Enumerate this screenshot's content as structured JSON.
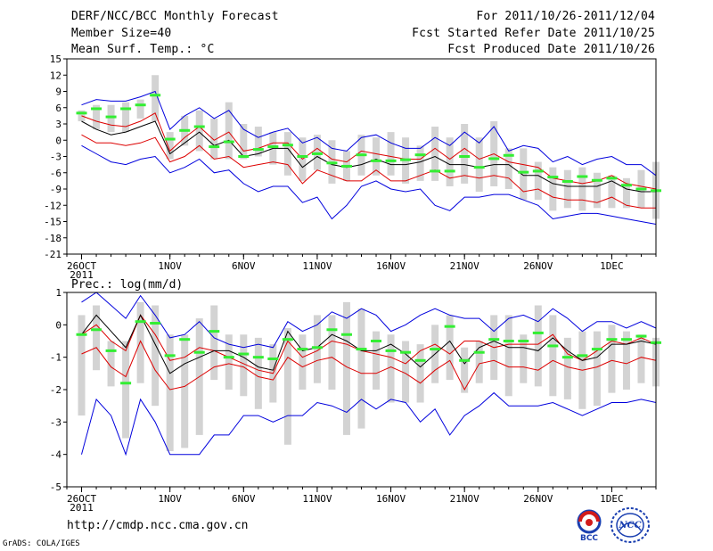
{
  "header": {
    "title": "DERF/NCC/BCC Monthly Forecast",
    "member": "Member Size=40",
    "variable": "Mean Surf. Temp.: °C",
    "period": "For 2011/10/26-2011/12/04",
    "started": "Fcst Started Refer Date 2011/10/25",
    "produced": "Fcst Produced Date 2011/10/26"
  },
  "footer": {
    "url": "http://cmdp.ncc.cma.gov.cn",
    "grads": "GrADS: COLA/IGES",
    "logo_bcc": "BCC",
    "logo_ncc": "NCC"
  },
  "colors": {
    "box": "#d3d3d3",
    "median": "#33ee33",
    "mean": "#000000",
    "inner": "#dd0000",
    "outer": "#0000dd"
  },
  "chart_data": [
    {
      "type": "line",
      "title": "Mean Surf. Temp.: °C",
      "ylim": [
        -21,
        15
      ],
      "yticks": [
        15,
        12,
        9,
        6,
        3,
        0,
        -3,
        -6,
        -9,
        -12,
        -15,
        -18,
        -21
      ],
      "xlim": [
        0,
        40
      ],
      "xticks": [
        {
          "x": 1,
          "label": "26OCT",
          "sub": "2011"
        },
        {
          "x": 7,
          "label": "1NOV"
        },
        {
          "x": 12,
          "label": "6NOV"
        },
        {
          "x": 17,
          "label": "11NOV"
        },
        {
          "x": 22,
          "label": "16NOV"
        },
        {
          "x": 27,
          "label": "21NOV"
        },
        {
          "x": 32,
          "label": "26NOV"
        },
        {
          "x": 37,
          "label": "1DEC"
        }
      ],
      "x": [
        1,
        2,
        3,
        4,
        5,
        6,
        7,
        8,
        9,
        10,
        11,
        12,
        13,
        14,
        15,
        16,
        17,
        18,
        19,
        20,
        21,
        22,
        23,
        24,
        25,
        26,
        27,
        28,
        29,
        30,
        31,
        32,
        33,
        34,
        35,
        36,
        37,
        38,
        39,
        40
      ],
      "series": [
        {
          "name": "upper",
          "values": [
            6.5,
            7.5,
            7.2,
            7.2,
            8.0,
            9.0,
            2.0,
            4.5,
            6.0,
            4.0,
            5.5,
            2.0,
            0.5,
            1.5,
            2.2,
            -0.5,
            0.5,
            -1.5,
            -2.0,
            0.5,
            1.0,
            -0.5,
            -1.5,
            -1.5,
            0.5,
            -1.0,
            1.5,
            -0.5,
            2.5,
            -2.0,
            -1.0,
            -1.5,
            -4.0,
            -3.0,
            -4.5,
            -3.5,
            -3.0,
            -4.5,
            -4.5,
            -6.5
          ]
        },
        {
          "name": "upper_inner",
          "values": [
            4.5,
            3.5,
            2.8,
            2.5,
            3.5,
            5.0,
            -2.0,
            0.5,
            2.5,
            0.0,
            1.5,
            -2.0,
            -1.5,
            -0.5,
            -0.5,
            -3.5,
            -1.5,
            -3.5,
            -4.0,
            -2.0,
            -2.5,
            -3.0,
            -3.5,
            -3.5,
            -1.5,
            -3.5,
            -1.5,
            -3.5,
            -2.5,
            -4.0,
            -4.5,
            -5.0,
            -7.0,
            -7.5,
            -8.0,
            -7.5,
            -6.5,
            -8.0,
            -8.5,
            -9.0
          ]
        },
        {
          "name": "mean",
          "values": [
            3.5,
            2.0,
            1.0,
            1.5,
            2.5,
            3.5,
            -2.5,
            -0.5,
            1.5,
            -1.0,
            0.0,
            -3.0,
            -2.5,
            -1.5,
            -1.5,
            -5.0,
            -3.0,
            -4.5,
            -5.0,
            -4.5,
            -3.5,
            -4.5,
            -4.5,
            -4.0,
            -3.0,
            -4.5,
            -4.5,
            -5.0,
            -4.5,
            -4.5,
            -6.5,
            -6.5,
            -8.0,
            -8.5,
            -8.5,
            -8.5,
            -7.5,
            -9.0,
            -9.5,
            -9.5
          ]
        },
        {
          "name": "lower_inner",
          "values": [
            1.0,
            -0.5,
            -0.5,
            -1.0,
            -0.5,
            0.5,
            -4.0,
            -3.0,
            -1.0,
            -3.5,
            -3.0,
            -5.0,
            -4.5,
            -4.0,
            -4.5,
            -8.0,
            -5.5,
            -6.5,
            -7.5,
            -7.5,
            -5.5,
            -7.5,
            -7.5,
            -6.5,
            -5.5,
            -7.0,
            -6.5,
            -7.0,
            -6.5,
            -7.0,
            -9.5,
            -9.0,
            -10.5,
            -11.0,
            -11.0,
            -11.5,
            -10.5,
            -12.0,
            -12.5,
            -12.5
          ]
        },
        {
          "name": "lower",
          "values": [
            -1.0,
            -2.5,
            -4.0,
            -4.5,
            -3.5,
            -3.0,
            -6.0,
            -5.0,
            -3.5,
            -6.0,
            -5.5,
            -8.0,
            -9.5,
            -8.5,
            -8.5,
            -11.5,
            -10.5,
            -14.5,
            -12.0,
            -8.5,
            -7.5,
            -9.0,
            -9.5,
            -9.0,
            -12.0,
            -13.0,
            -10.5,
            -10.5,
            -10.0,
            -10.0,
            -11.0,
            -12.0,
            -14.5,
            -14.0,
            -13.5,
            -13.5,
            -14.0,
            -14.5,
            -15.0,
            -15.5
          ]
        },
        {
          "name": "median",
          "values": [
            5.0,
            5.8,
            4.3,
            5.8,
            6.5,
            8.3,
            0.2,
            1.8,
            2.5,
            -1.2,
            -0.3,
            -3.0,
            -1.7,
            -1.2,
            -0.9,
            -3.0,
            -2.5,
            -4.2,
            -4.8,
            -2.7,
            -3.8,
            -3.8,
            -3.6,
            -2.7,
            -5.7,
            -5.7,
            -3.0,
            -5.0,
            -3.4,
            -2.8,
            -5.9,
            -5.7,
            -6.8,
            -7.6,
            -6.7,
            -7.4,
            -7.0,
            -8.3,
            -9.0,
            -9.3
          ]
        }
      ],
      "boxes": {
        "high": [
          5.5,
          6.5,
          6.5,
          7.0,
          7.5,
          12.0,
          1.5,
          4.5,
          5.5,
          4.0,
          7.0,
          3.0,
          2.5,
          1.5,
          1.5,
          0.5,
          1.0,
          0.0,
          -2.0,
          1.0,
          0.5,
          1.5,
          0.5,
          -1.0,
          2.5,
          0.5,
          3.0,
          0.5,
          3.5,
          -1.5,
          -1.5,
          -4.0,
          -5.0,
          -5.5,
          -5.0,
          -6.0,
          -6.5,
          -7.0,
          -5.5,
          -4.0
        ],
        "low": [
          3.5,
          2.0,
          1.5,
          1.5,
          4.0,
          3.5,
          -3.5,
          -1.0,
          -2.0,
          -3.5,
          -3.5,
          -3.5,
          -3.0,
          -4.5,
          -6.5,
          -7.5,
          -5.5,
          -8.0,
          -7.5,
          -6.5,
          -6.5,
          -6.5,
          -8.0,
          -7.5,
          -7.5,
          -8.5,
          -8.0,
          -9.5,
          -8.5,
          -9.0,
          -11.0,
          -11.0,
          -13.0,
          -12.5,
          -13.0,
          -12.5,
          -12.5,
          -12.5,
          -12.5,
          -14.5
        ]
      }
    },
    {
      "type": "line",
      "title": "Prec.: log(mm/d)",
      "ylim": [
        -5,
        1
      ],
      "yticks": [
        1,
        0,
        -1,
        -2,
        -3,
        -4,
        -5
      ],
      "xlim": [
        0,
        40
      ],
      "xticks": [
        {
          "x": 1,
          "label": "26OCT",
          "sub": "2011"
        },
        {
          "x": 7,
          "label": "1NOV"
        },
        {
          "x": 12,
          "label": "6NOV"
        },
        {
          "x": 17,
          "label": "11NOV"
        },
        {
          "x": 22,
          "label": "16NOV"
        },
        {
          "x": 27,
          "label": "21NOV"
        },
        {
          "x": 32,
          "label": "26NOV"
        },
        {
          "x": 37,
          "label": "1DEC"
        }
      ],
      "x": [
        1,
        2,
        3,
        4,
        5,
        6,
        7,
        8,
        9,
        10,
        11,
        12,
        13,
        14,
        15,
        16,
        17,
        18,
        19,
        20,
        21,
        22,
        23,
        24,
        25,
        26,
        27,
        28,
        29,
        30,
        31,
        32,
        33,
        34,
        35,
        36,
        37,
        38,
        39,
        40
      ],
      "series": [
        {
          "name": "upper",
          "values": [
            0.7,
            1.0,
            0.6,
            0.2,
            0.9,
            0.3,
            -0.4,
            -0.3,
            0.1,
            -0.4,
            -0.6,
            -0.7,
            -0.6,
            -0.7,
            0.1,
            -0.2,
            0.0,
            0.4,
            0.2,
            0.5,
            0.3,
            -0.2,
            0.0,
            0.3,
            0.5,
            0.3,
            0.2,
            0.2,
            -0.2,
            0.2,
            0.3,
            0.1,
            0.5,
            0.2,
            -0.2,
            0.1,
            0.1,
            -0.1,
            0.1,
            -0.1
          ]
        },
        {
          "name": "upper_inner",
          "values": [
            -0.3,
            0.0,
            -0.5,
            -0.8,
            0.3,
            -0.3,
            -1.1,
            -1.0,
            -0.7,
            -0.8,
            -1.0,
            -1.2,
            -1.4,
            -1.5,
            -0.5,
            -1.0,
            -0.8,
            -0.5,
            -0.6,
            -0.8,
            -0.9,
            -1.0,
            -1.2,
            -0.8,
            -0.6,
            -0.9,
            -0.5,
            -0.5,
            -0.7,
            -0.6,
            -0.6,
            -0.6,
            -0.3,
            -0.9,
            -1.1,
            -0.8,
            -0.5,
            -0.6,
            -0.4,
            -0.6
          ]
        },
        {
          "name": "mean",
          "values": [
            -0.3,
            0.3,
            -0.2,
            -0.7,
            0.3,
            -0.6,
            -1.5,
            -1.2,
            -1.0,
            -0.8,
            -0.8,
            -1.0,
            -1.3,
            -1.4,
            -0.2,
            -0.8,
            -0.7,
            -0.3,
            -0.5,
            -0.8,
            -0.8,
            -0.6,
            -0.9,
            -1.3,
            -0.9,
            -0.5,
            -1.2,
            -0.7,
            -0.5,
            -0.7,
            -0.7,
            -0.8,
            -0.4,
            -0.8,
            -1.1,
            -1.0,
            -0.6,
            -0.6,
            -0.5,
            -0.6
          ]
        },
        {
          "name": "lower_inner",
          "values": [
            -0.9,
            -0.7,
            -1.3,
            -1.6,
            -0.5,
            -1.4,
            -2.0,
            -1.9,
            -1.6,
            -1.3,
            -1.2,
            -1.3,
            -1.6,
            -1.7,
            -1.0,
            -1.3,
            -1.1,
            -1.0,
            -1.3,
            -1.5,
            -1.5,
            -1.3,
            -1.5,
            -1.8,
            -1.4,
            -1.1,
            -2.0,
            -1.2,
            -1.1,
            -1.3,
            -1.3,
            -1.4,
            -1.1,
            -1.3,
            -1.4,
            -1.3,
            -1.1,
            -1.2,
            -1.0,
            -1.1
          ]
        },
        {
          "name": "lower",
          "values": [
            -4.0,
            -2.3,
            -2.8,
            -4.0,
            -2.3,
            -3.0,
            -4.0,
            -4.0,
            -4.0,
            -3.4,
            -3.4,
            -2.8,
            -2.8,
            -3.0,
            -2.8,
            -2.8,
            -2.4,
            -2.5,
            -2.7,
            -2.3,
            -2.6,
            -2.3,
            -2.4,
            -3.0,
            -2.6,
            -3.4,
            -2.8,
            -2.5,
            -2.1,
            -2.5,
            -2.5,
            -2.5,
            -2.4,
            -2.6,
            -2.8,
            -2.6,
            -2.4,
            -2.4,
            -2.3,
            -2.4
          ]
        },
        {
          "name": "median",
          "values": [
            -0.3,
            -0.15,
            -0.8,
            -1.8,
            0.1,
            0.05,
            -0.95,
            -0.45,
            -0.85,
            -0.2,
            -1.0,
            -0.9,
            -1.0,
            -1.05,
            -0.45,
            -0.75,
            -0.7,
            -0.15,
            -0.3,
            -0.75,
            -0.5,
            -0.8,
            -0.85,
            -1.1,
            -0.75,
            -0.05,
            -1.1,
            -0.85,
            -0.45,
            -0.5,
            -0.5,
            -0.25,
            -0.65,
            -1.0,
            -0.95,
            -0.75,
            -0.45,
            -0.45,
            -0.35,
            -0.55
          ]
        }
      ],
      "boxes": {
        "high": [
          0.3,
          0.6,
          -0.5,
          -0.5,
          0.7,
          0.6,
          -0.3,
          -0.3,
          0.2,
          0.6,
          -0.3,
          -0.3,
          -0.4,
          -0.6,
          -0.1,
          -0.3,
          0.3,
          0.3,
          0.7,
          0.5,
          -0.2,
          -0.3,
          -0.5,
          -0.6,
          0.0,
          0.3,
          -0.7,
          -0.5,
          0.3,
          0.3,
          -0.3,
          0.6,
          0.3,
          -0.4,
          -0.2,
          -0.2,
          0.0,
          -0.2,
          -0.3,
          -0.4
        ],
        "low": [
          -2.8,
          -1.4,
          -1.9,
          -3.5,
          -1.8,
          -2.5,
          -3.9,
          -3.8,
          -3.4,
          -1.7,
          -2.0,
          -2.2,
          -2.6,
          -2.4,
          -3.7,
          -2.0,
          -1.8,
          -2.0,
          -3.4,
          -3.2,
          -2.0,
          -2.4,
          -2.4,
          -2.4,
          -1.8,
          -1.7,
          -2.1,
          -1.8,
          -1.7,
          -2.2,
          -1.8,
          -1.9,
          -2.2,
          -2.3,
          -2.6,
          -2.5,
          -2.1,
          -2.0,
          -1.8,
          -1.9
        ]
      }
    }
  ]
}
